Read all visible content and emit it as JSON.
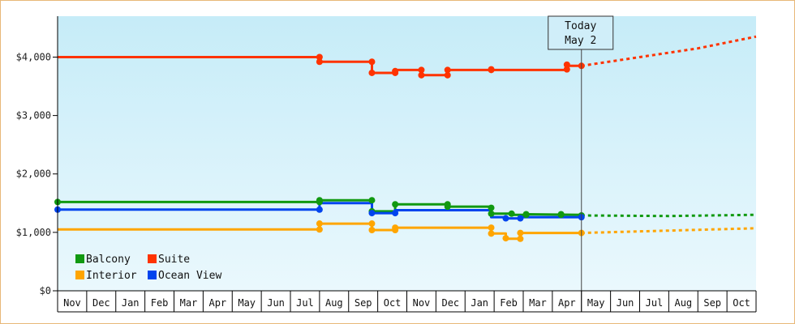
{
  "chart_data": {
    "type": "line",
    "title": "",
    "xlabel": "",
    "ylabel": "",
    "ylim": [
      0,
      4700
    ],
    "y_ticks": [
      {
        "value": 0,
        "label": "$0"
      },
      {
        "value": 1000,
        "label": "$1,000"
      },
      {
        "value": 2000,
        "label": "$2,000"
      },
      {
        "value": 3000,
        "label": "$3,000"
      },
      {
        "value": 4000,
        "label": "$4,000"
      }
    ],
    "x_months": [
      "Nov",
      "Dec",
      "Jan",
      "Feb",
      "Mar",
      "Apr",
      "May",
      "Jun",
      "Jul",
      "Aug",
      "Sep",
      "Oct",
      "Nov",
      "Dec",
      "Jan",
      "Feb",
      "Mar",
      "Apr",
      "May",
      "Jun",
      "Jul",
      "Aug",
      "Sep",
      "Oct"
    ],
    "today": {
      "month_position": 18.0,
      "line1": "Today",
      "line2": "May 2"
    },
    "legend_position": "bottom-left",
    "grid": false,
    "series": [
      {
        "name": "Balcony",
        "color": "#119911",
        "points": [
          [
            0.0,
            1520
          ],
          [
            9.0,
            1520
          ],
          [
            9.0,
            1550
          ],
          [
            10.8,
            1550
          ],
          [
            10.8,
            1360
          ],
          [
            11.6,
            1360
          ],
          [
            11.6,
            1480
          ],
          [
            13.4,
            1480
          ],
          [
            13.4,
            1440
          ],
          [
            14.9,
            1440
          ],
          [
            14.9,
            1320
          ],
          [
            15.6,
            1320
          ],
          [
            15.6,
            1300
          ],
          [
            16.1,
            1300
          ],
          [
            16.1,
            1310
          ],
          [
            18.0,
            1300
          ]
        ],
        "forecast": [
          [
            18.0,
            1290
          ],
          [
            21.0,
            1280
          ],
          [
            24.0,
            1300
          ]
        ]
      },
      {
        "name": "Suite",
        "color": "#ff3300",
        "points": [
          [
            0.0,
            4000
          ],
          [
            9.0,
            4000
          ],
          [
            9.0,
            3920
          ],
          [
            10.8,
            3920
          ],
          [
            10.8,
            3730
          ],
          [
            11.6,
            3730
          ],
          [
            11.6,
            3780
          ],
          [
            12.5,
            3780
          ],
          [
            12.5,
            3690
          ],
          [
            13.4,
            3690
          ],
          [
            13.4,
            3780
          ],
          [
            14.9,
            3780
          ],
          [
            14.9,
            3780
          ],
          [
            17.5,
            3780
          ],
          [
            17.5,
            3850
          ],
          [
            18.0,
            3850
          ]
        ],
        "forecast": [
          [
            18.0,
            3850
          ],
          [
            20.0,
            4000
          ],
          [
            22.0,
            4150
          ],
          [
            24.0,
            4350
          ]
        ]
      },
      {
        "name": "Interior",
        "color": "#ffa500",
        "points": [
          [
            0.0,
            1050
          ],
          [
            9.0,
            1050
          ],
          [
            9.0,
            1150
          ],
          [
            10.8,
            1150
          ],
          [
            10.8,
            1040
          ],
          [
            11.6,
            1040
          ],
          [
            11.6,
            1080
          ],
          [
            14.9,
            1080
          ],
          [
            14.9,
            980
          ],
          [
            15.4,
            980
          ],
          [
            15.4,
            890
          ],
          [
            15.9,
            890
          ],
          [
            15.9,
            990
          ],
          [
            18.0,
            990
          ]
        ],
        "forecast": [
          [
            18.0,
            990
          ],
          [
            21.0,
            1030
          ],
          [
            24.0,
            1070
          ]
        ]
      },
      {
        "name": "Ocean View",
        "color": "#0044ee",
        "points": [
          [
            0.0,
            1390
          ],
          [
            9.0,
            1390
          ],
          [
            9.0,
            1500
          ],
          [
            10.8,
            1500
          ],
          [
            10.8,
            1330
          ],
          [
            11.6,
            1330
          ],
          [
            11.6,
            1380
          ],
          [
            14.9,
            1380
          ],
          [
            14.9,
            1260
          ],
          [
            15.4,
            1260
          ],
          [
            15.4,
            1240
          ],
          [
            15.9,
            1240
          ],
          [
            15.9,
            1260
          ],
          [
            18.0,
            1260
          ]
        ],
        "forecast": []
      }
    ],
    "markers": {
      "Balcony": [
        [
          0.0,
          1520
        ],
        [
          9.0,
          1520
        ],
        [
          9.0,
          1550
        ],
        [
          10.8,
          1550
        ],
        [
          10.8,
          1360
        ],
        [
          11.6,
          1480
        ],
        [
          13.4,
          1480
        ],
        [
          13.4,
          1440
        ],
        [
          14.9,
          1420
        ],
        [
          14.9,
          1320
        ],
        [
          15.6,
          1320
        ],
        [
          16.1,
          1310
        ],
        [
          16.1,
          1300
        ],
        [
          17.3,
          1310
        ],
        [
          17.3,
          1300
        ],
        [
          18.0,
          1290
        ]
      ],
      "Suite": [
        [
          9.0,
          4000
        ],
        [
          9.0,
          3920
        ],
        [
          10.8,
          3920
        ],
        [
          10.8,
          3730
        ],
        [
          11.6,
          3730
        ],
        [
          11.6,
          3760
        ],
        [
          12.5,
          3780
        ],
        [
          12.5,
          3690
        ],
        [
          13.4,
          3690
        ],
        [
          13.4,
          3780
        ],
        [
          14.9,
          3780
        ],
        [
          14.9,
          3790
        ],
        [
          17.5,
          3790
        ],
        [
          17.5,
          3870
        ],
        [
          18.0,
          3850
        ]
      ],
      "Interior": [
        [
          9.0,
          1050
        ],
        [
          9.0,
          1150
        ],
        [
          10.8,
          1150
        ],
        [
          10.8,
          1040
        ],
        [
          11.6,
          1040
        ],
        [
          11.6,
          1080
        ],
        [
          14.9,
          1080
        ],
        [
          14.9,
          980
        ],
        [
          15.4,
          900
        ],
        [
          15.9,
          890
        ],
        [
          15.9,
          990
        ],
        [
          18.0,
          990
        ]
      ],
      "Ocean View": [
        [
          0.0,
          1390
        ],
        [
          9.0,
          1390
        ],
        [
          10.8,
          1330
        ],
        [
          11.6,
          1330
        ],
        [
          15.4,
          1240
        ],
        [
          15.9,
          1240
        ],
        [
          18.0,
          1260
        ]
      ]
    }
  }
}
